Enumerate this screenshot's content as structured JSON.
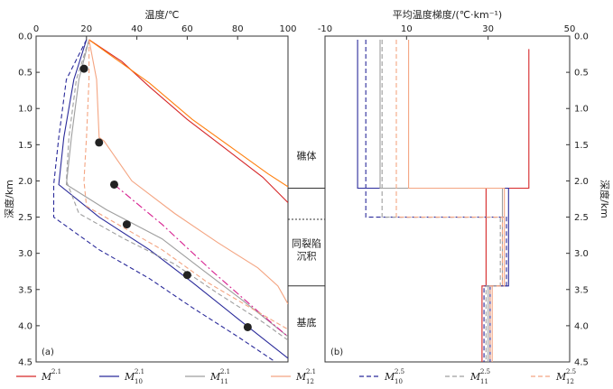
{
  "chart_data": [
    {
      "panel_label": "(a)",
      "type": "line",
      "xlabel": "温度/℃",
      "ylabel": "深度/km",
      "xlim": [
        0,
        100
      ],
      "ylim": [
        4.5,
        0.0
      ],
      "x_ticks": [
        "0",
        "20",
        "40",
        "60",
        "80",
        "100"
      ],
      "y_ticks": [
        "0.0",
        "0.5",
        "1.0",
        "1.5",
        "2.0",
        "2.5",
        "3.0",
        "3.5",
        "4.0",
        "4.5"
      ],
      "series": [
        {
          "key": "M21",
          "color": "#d62728",
          "dash": "solid",
          "points": [
            [
              21,
              0.05
            ],
            [
              34,
              0.35
            ],
            [
              45,
              0.7
            ],
            [
              60,
              1.15
            ],
            [
              75,
              1.55
            ],
            [
              90,
              1.95
            ],
            [
              100,
              2.3
            ]
          ]
        },
        {
          "key": "M21_orange",
          "color": "#ff7f0e",
          "dash": "solid",
          "points": [
            [
              21,
              0.05
            ],
            [
              33,
              0.35
            ],
            [
              45,
              0.65
            ],
            [
              62,
              1.15
            ],
            [
              78,
              1.55
            ],
            [
              92,
              1.9
            ],
            [
              100,
              2.08
            ]
          ]
        },
        {
          "key": "M10_21",
          "color": "#2a2a9a",
          "dash": "solid",
          "points": [
            [
              20,
              0.05
            ],
            [
              15,
              0.6
            ],
            [
              11,
              1.4
            ],
            [
              9,
              2.05
            ],
            [
              25,
              2.5
            ],
            [
              45,
              2.95
            ],
            [
              62,
              3.4
            ],
            [
              80,
              3.9
            ],
            [
              100,
              4.45
            ]
          ]
        },
        {
          "key": "M11_21",
          "color": "#9e9e9e",
          "dash": "solid",
          "points": [
            [
              21,
              0.05
            ],
            [
              17,
              0.6
            ],
            [
              14,
              1.4
            ],
            [
              12,
              2.05
            ],
            [
              28,
              2.4
            ],
            [
              50,
              2.8
            ],
            [
              65,
              3.2
            ],
            [
              82,
              3.65
            ],
            [
              100,
              4.15
            ]
          ]
        },
        {
          "key": "M12_21",
          "color": "#f4a582",
          "dash": "solid",
          "points": [
            [
              21,
              0.05
            ],
            [
              24,
              0.6
            ],
            [
              25,
              1.4
            ],
            [
              27,
              1.45
            ],
            [
              38,
              2.0
            ],
            [
              55,
              2.45
            ],
            [
              72,
              2.85
            ],
            [
              88,
              3.2
            ],
            [
              96,
              3.45
            ],
            [
              100,
              3.7
            ]
          ]
        },
        {
          "key": "magenta_dashdot",
          "color": "#d61f8f",
          "dash": "8,3,2,3",
          "points": [
            [
              31,
              2.05
            ],
            [
              50,
              2.6
            ],
            [
              70,
              3.25
            ],
            [
              88,
              3.8
            ],
            [
              100,
              4.15
            ]
          ]
        },
        {
          "key": "M10_25",
          "color": "#2a2a9a",
          "dash": "5,3",
          "points": [
            [
              20,
              0.05
            ],
            [
              12,
              0.6
            ],
            [
              9,
              1.4
            ],
            [
              7,
              2.05
            ],
            [
              7,
              2.5
            ],
            [
              25,
              2.95
            ],
            [
              45,
              3.35
            ],
            [
              62,
              3.75
            ],
            [
              80,
              4.15
            ],
            [
              95,
              4.5
            ]
          ]
        },
        {
          "key": "M11_25",
          "color": "#9e9e9e",
          "dash": "5,3",
          "points": [
            [
              21,
              0.05
            ],
            [
              16,
              0.6
            ],
            [
              13,
              1.4
            ],
            [
              12,
              2.0
            ],
            [
              17,
              2.45
            ],
            [
              35,
              2.8
            ],
            [
              55,
              3.15
            ],
            [
              72,
              3.55
            ],
            [
              90,
              3.95
            ],
            [
              100,
              4.2
            ]
          ]
        },
        {
          "key": "M12_25",
          "color": "#f4a582",
          "dash": "5,3",
          "points": [
            [
              21,
              0.05
            ],
            [
              21,
              0.6
            ],
            [
              20,
              1.4
            ],
            [
              19,
              2.0
            ],
            [
              20,
              2.35
            ],
            [
              30,
              2.55
            ],
            [
              50,
              2.95
            ],
            [
              68,
              3.4
            ],
            [
              85,
              3.75
            ],
            [
              100,
              4.05
            ]
          ]
        }
      ],
      "measured_points": [
        [
          19,
          0.45
        ],
        [
          25,
          1.47
        ],
        [
          31,
          2.05
        ],
        [
          36,
          2.6
        ],
        [
          60,
          3.3
        ],
        [
          84,
          4.02
        ]
      ]
    },
    {
      "panel_label": "(b)",
      "type": "line",
      "xlabel": "平均温度梯度/(℃·km⁻¹)",
      "ylabel": "深度/km",
      "xlim": [
        -10,
        50
      ],
      "ylim": [
        4.5,
        0.0
      ],
      "x_ticks": [
        "-10",
        "10",
        "30",
        "50"
      ],
      "y_ticks": [
        "0.0",
        "0.5",
        "1.0",
        "1.5",
        "2.0",
        "2.5",
        "3.0",
        "3.5",
        "4.0",
        "4.5"
      ],
      "series": [
        {
          "key": "M21",
          "color": "#d62728",
          "dash": "solid",
          "points": [
            [
              40,
              0.18
            ],
            [
              40,
              2.1
            ],
            [
              29.5,
              2.1
            ],
            [
              29.5,
              3.45
            ],
            [
              28.5,
              3.45
            ],
            [
              28.5,
              4.5
            ]
          ]
        },
        {
          "key": "M10_21",
          "color": "#2a2a9a",
          "dash": "solid",
          "points": [
            [
              -2,
              0.05
            ],
            [
              -2,
              2.1
            ],
            [
              35,
              2.1
            ],
            [
              35,
              3.45
            ],
            [
              30.5,
              3.45
            ],
            [
              30.5,
              4.5
            ]
          ]
        },
        {
          "key": "M11_21",
          "color": "#9e9e9e",
          "dash": "solid",
          "points": [
            [
              3.5,
              0.05
            ],
            [
              3.5,
              2.1
            ],
            [
              33.5,
              2.1
            ],
            [
              33.5,
              3.45
            ],
            [
              30,
              3.45
            ],
            [
              30,
              4.5
            ]
          ]
        },
        {
          "key": "M12_21",
          "color": "#f4a582",
          "dash": "solid",
          "points": [
            [
              10.5,
              0.05
            ],
            [
              10.5,
              2.1
            ],
            [
              34,
              2.1
            ],
            [
              34,
              3.45
            ],
            [
              31,
              3.45
            ],
            [
              31,
              4.5
            ]
          ]
        },
        {
          "key": "M10_25",
          "color": "#2a2a9a",
          "dash": "5,3",
          "points": [
            [
              0,
              0.05
            ],
            [
              0,
              2.5
            ],
            [
              34.5,
              2.5
            ],
            [
              34.5,
              3.45
            ],
            [
              29,
              3.45
            ],
            [
              29,
              4.5
            ]
          ]
        },
        {
          "key": "M11_25",
          "color": "#9e9e9e",
          "dash": "5,3",
          "points": [
            [
              4,
              0.05
            ],
            [
              4,
              2.5
            ],
            [
              33,
              2.5
            ],
            [
              33,
              3.45
            ],
            [
              29.5,
              3.45
            ],
            [
              29.5,
              4.5
            ]
          ]
        },
        {
          "key": "M12_25",
          "color": "#f4a582",
          "dash": "5,3",
          "points": [
            [
              7.5,
              0.05
            ],
            [
              7.5,
              2.5
            ],
            [
              33.5,
              2.5
            ],
            [
              33.5,
              3.45
            ],
            [
              30.5,
              3.45
            ],
            [
              30.5,
              4.5
            ]
          ]
        }
      ]
    }
  ],
  "zones": [
    {
      "label": "礁体"
    },
    {
      "label": "同裂陷\n沉积"
    },
    {
      "label": "基底"
    }
  ],
  "legend": [
    {
      "base": "M",
      "sub": "",
      "sup": "2.1",
      "color": "#d62728",
      "dash": "solid"
    },
    {
      "base": "M",
      "sub": "10",
      "sup": "2.1",
      "color": "#2a2a9a",
      "dash": "solid"
    },
    {
      "base": "M",
      "sub": "11",
      "sup": "2.1",
      "color": "#9e9e9e",
      "dash": "solid"
    },
    {
      "base": "M",
      "sub": "12",
      "sup": "2.1",
      "color": "#f4a582",
      "dash": "solid"
    },
    {
      "base": "M",
      "sub": "10",
      "sup": "2.5",
      "color": "#2a2a9a",
      "dash": "5,3"
    },
    {
      "base": "M",
      "sub": "11",
      "sup": "2.5",
      "color": "#9e9e9e",
      "dash": "5,3"
    },
    {
      "base": "M",
      "sub": "12",
      "sup": "2.5",
      "color": "#f4a582",
      "dash": "5,3"
    }
  ],
  "colors": {
    "frame": "#333333",
    "marker": "#222222"
  }
}
